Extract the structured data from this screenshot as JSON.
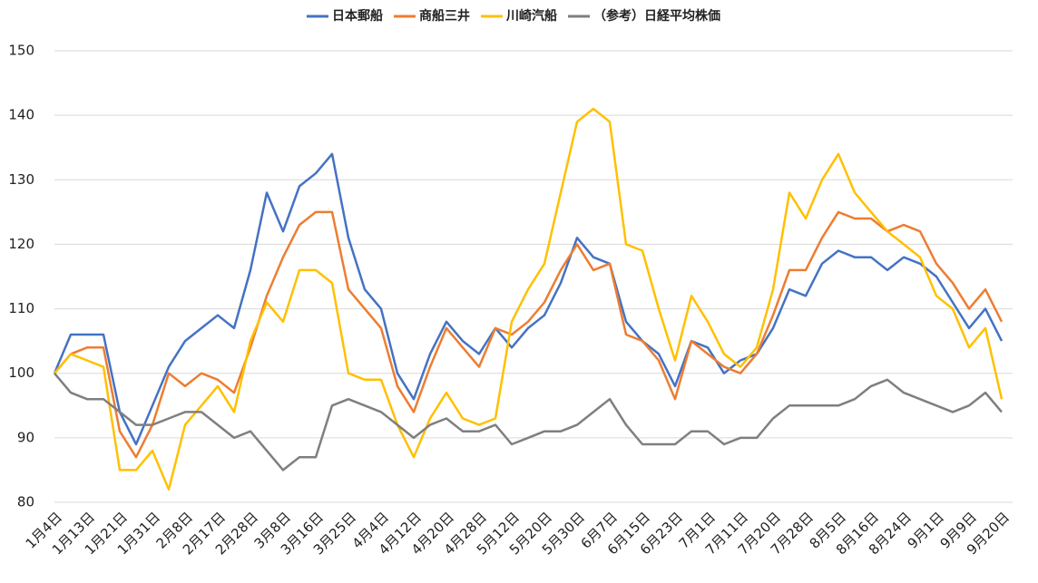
{
  "chart_data": {
    "type": "line",
    "categories": [
      "1月4日",
      null,
      "1月13日",
      null,
      "1月21日",
      null,
      "1月31日",
      null,
      "2月8日",
      null,
      "2月17日",
      null,
      "2月28日",
      null,
      "3月8日",
      null,
      "3月16日",
      null,
      "3月25日",
      null,
      "4月4日",
      null,
      "4月12日",
      null,
      "4月20日",
      null,
      "4月28日",
      null,
      "5月12日",
      null,
      "5月20日",
      null,
      "5月30日",
      null,
      "6月7日",
      null,
      "6月15日",
      null,
      "6月23日",
      null,
      "7月1日",
      null,
      "7月11日",
      null,
      "7月20日",
      null,
      "7月28日",
      null,
      "8月5日",
      null,
      "8月16日",
      null,
      "8月24日",
      null,
      "9月1日",
      null,
      "9月9日",
      null,
      "9月20日"
    ],
    "series": [
      {
        "name": "日本郵船",
        "color": "#4472c4",
        "values": [
          100,
          106,
          106,
          106,
          94,
          89,
          95,
          101,
          105,
          107,
          109,
          107,
          116,
          128,
          122,
          129,
          131,
          134,
          121,
          113,
          110,
          100,
          96,
          103,
          108,
          105,
          103,
          107,
          104,
          107,
          109,
          114,
          121,
          118,
          117,
          108,
          105,
          103,
          98,
          105,
          104,
          100,
          102,
          103,
          107,
          113,
          112,
          117,
          119,
          118,
          118,
          116,
          118,
          117,
          115,
          111,
          107,
          110,
          105
        ]
      },
      {
        "name": "商船三井",
        "color": "#ed7d31",
        "values": [
          100,
          103,
          104,
          104,
          91,
          87,
          92,
          100,
          98,
          100,
          99,
          97,
          104,
          112,
          118,
          123,
          125,
          125,
          113,
          110,
          107,
          98,
          94,
          101,
          107,
          104,
          101,
          107,
          106,
          108,
          111,
          116,
          120,
          116,
          117,
          106,
          105,
          102,
          96,
          105,
          103,
          101,
          100,
          103,
          109,
          116,
          116,
          121,
          125,
          124,
          124,
          122,
          123,
          122,
          117,
          114,
          110,
          113,
          108
        ]
      },
      {
        "name": "川崎汽船",
        "color": "#ffc000",
        "values": [
          100,
          103,
          102,
          101,
          85,
          85,
          88,
          82,
          92,
          95,
          98,
          94,
          105,
          111,
          108,
          116,
          116,
          114,
          100,
          99,
          99,
          92,
          87,
          93,
          97,
          93,
          92,
          93,
          108,
          113,
          117,
          128,
          139,
          141,
          139,
          120,
          119,
          110,
          102,
          112,
          108,
          103,
          101,
          104,
          113,
          128,
          124,
          130,
          134,
          128,
          125,
          122,
          120,
          118,
          112,
          110,
          104,
          107,
          96
        ]
      },
      {
        "name": "（参考）日経平均株価",
        "color": "#7f7f7f",
        "values": [
          100,
          97,
          96,
          96,
          94,
          92,
          92,
          93,
          94,
          94,
          92,
          90,
          91,
          88,
          85,
          87,
          87,
          95,
          96,
          95,
          94,
          92,
          90,
          92,
          93,
          91,
          91,
          92,
          89,
          90,
          91,
          91,
          92,
          94,
          96,
          92,
          89,
          89,
          89,
          91,
          91,
          89,
          90,
          90,
          93,
          95,
          95,
          95,
          95,
          96,
          98,
          99,
          97,
          96,
          95,
          94,
          95,
          97,
          94
        ]
      }
    ],
    "ylim": [
      80,
      150
    ],
    "yticks": [
      80,
      90,
      100,
      110,
      120,
      130,
      140,
      150
    ],
    "grid": true,
    "legend": "top"
  }
}
